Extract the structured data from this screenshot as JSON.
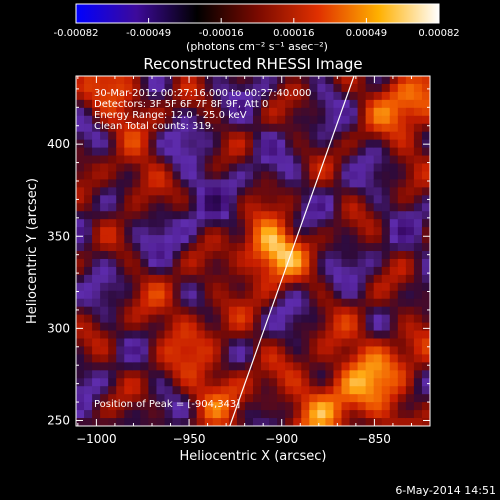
{
  "colorbar": {
    "ticks": [
      "-0.00082",
      "-0.00049",
      "-0.00016",
      "0.00016",
      "0.00049",
      "0.00082"
    ],
    "unit_label": "(photons cm⁻² s⁻¹ asec⁻²)",
    "stops": [
      "#0000ff",
      "#3d0a9a",
      "#000000",
      "#7a0a00",
      "#e03000",
      "#ffb000",
      "#ffffff"
    ]
  },
  "chart_data": {
    "type": "heatmap",
    "title": "Reconstructed RHESSI Image",
    "xlabel": "Heliocentric X (arcsec)",
    "ylabel": "Heliocentric Y (arcsec)",
    "xlim": [
      -1011,
      -820
    ],
    "ylim": [
      247,
      437
    ],
    "xticks": [
      -1000,
      -950,
      -900,
      -850
    ],
    "yticks": [
      250,
      300,
      350,
      400
    ],
    "xtick_labels": [
      "−1000",
      "−950",
      "−900",
      "−850"
    ],
    "ytick_labels": [
      "250",
      "300",
      "350",
      "400"
    ],
    "peak": [
      -904,
      343
    ],
    "annotations": [
      "30-Mar-2012 00:27:16.000 to 00:27:40.000",
      "Detectors: 3F 5F 6F 7F 8F 9F, Att 0",
      "Energy Range: 12.0 - 25.0 keV",
      "Clean    Total counts: 319."
    ],
    "peak_label": "Position of Peak = [-904,343]",
    "limb_line": [
      [
        -928,
        247
      ],
      [
        -861,
        437
      ]
    ]
  },
  "footer_date": "6-May-2014 14:51"
}
